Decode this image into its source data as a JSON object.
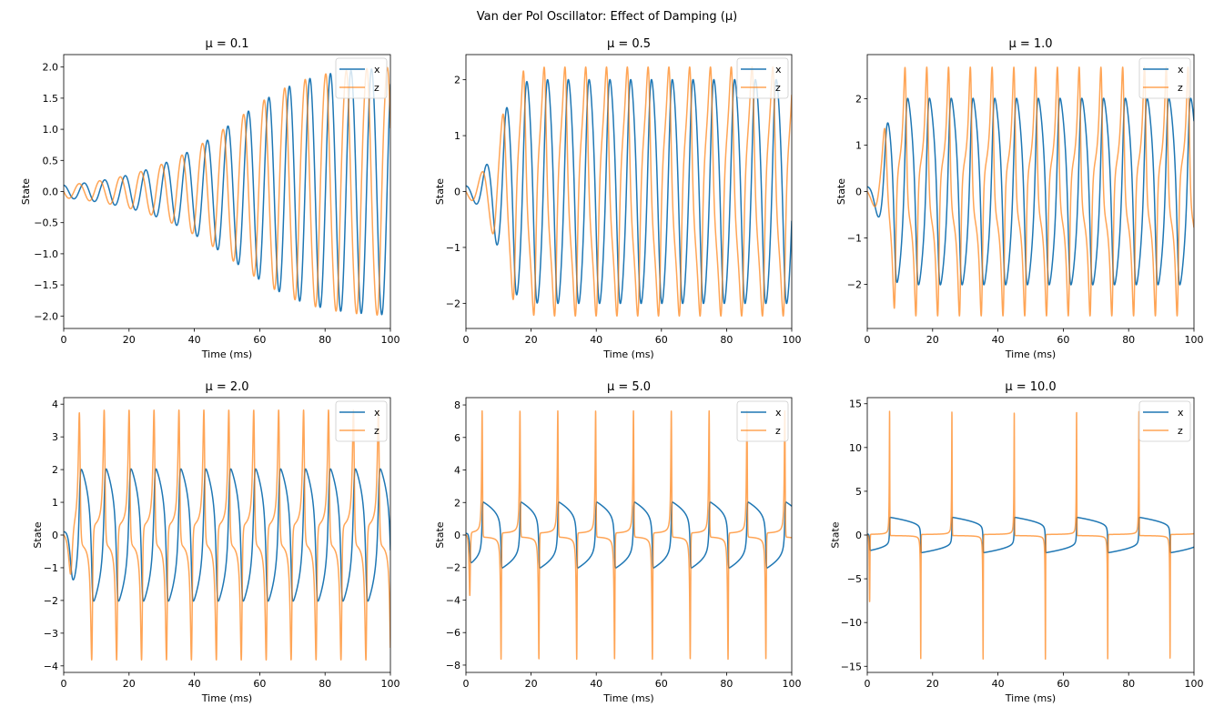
{
  "figure": {
    "suptitle": "Van der Pol Oscillator: Effect of Damping (μ)"
  },
  "chart_data": [
    {
      "type": "line",
      "title": "μ = 0.1",
      "mu": 0.1,
      "xlabel": "Time (ms)",
      "ylabel": "State",
      "xlim": [
        0,
        100
      ],
      "ylim": [
        -2.2,
        2.2
      ],
      "xticks": [
        "0",
        "20",
        "40",
        "60",
        "80",
        "100"
      ],
      "xtick_values": [
        0,
        20,
        40,
        60,
        80,
        100
      ],
      "yticks": [
        "−2.0",
        "−1.5",
        "−1.0",
        "−0.5",
        "0.0",
        "0.5",
        "1.0",
        "1.5",
        "2.0"
      ],
      "ytick_values": [
        -2.0,
        -1.5,
        -1.0,
        -0.5,
        0.0,
        0.5,
        1.0,
        1.5,
        2.0
      ],
      "legend": [
        "x",
        "z"
      ],
      "legend_position": "top-right",
      "grid": false,
      "initial_conditions": {
        "x": 0.1,
        "z": 0.0
      },
      "series": [
        {
          "name": "x",
          "color": "#1f77b4",
          "description": "growing oscillation from 0.1 to amplitude ~2.0, period ~6.3"
        },
        {
          "name": "z",
          "color": "#ff7f0e",
          "description": "derivative of x, leads x, amplitude grows to ~2.0"
        }
      ]
    },
    {
      "type": "line",
      "title": "μ = 0.5",
      "mu": 0.5,
      "xlabel": "Time (ms)",
      "ylabel": "State",
      "xlim": [
        0,
        100
      ],
      "ylim": [
        -2.45,
        2.45
      ],
      "xticks": [
        "0",
        "20",
        "40",
        "60",
        "80",
        "100"
      ],
      "xtick_values": [
        0,
        20,
        40,
        60,
        80,
        100
      ],
      "yticks": [
        "−2",
        "−1",
        "0",
        "1",
        "2"
      ],
      "ytick_values": [
        -2,
        -1,
        0,
        1,
        2
      ],
      "legend": [
        "x",
        "z"
      ],
      "legend_position": "top-right",
      "grid": false,
      "initial_conditions": {
        "x": 0.1,
        "z": 0.0
      },
      "series": [
        {
          "name": "x",
          "color": "#1f77b4",
          "description": "limit cycle amplitude ~2.0"
        },
        {
          "name": "z",
          "color": "#ff7f0e",
          "description": "peaks ~2.2"
        }
      ]
    },
    {
      "type": "line",
      "title": "μ = 1.0",
      "mu": 1.0,
      "xlabel": "Time (ms)",
      "ylabel": "State",
      "xlim": [
        0,
        100
      ],
      "ylim": [
        -2.95,
        2.95
      ],
      "xticks": [
        "0",
        "20",
        "40",
        "60",
        "80",
        "100"
      ],
      "xtick_values": [
        0,
        20,
        40,
        60,
        80,
        100
      ],
      "yticks": [
        "−2",
        "−1",
        "0",
        "1",
        "2"
      ],
      "ytick_values": [
        -2,
        -1,
        0,
        1,
        2
      ],
      "legend": [
        "x",
        "z"
      ],
      "legend_position": "top-right",
      "grid": false,
      "initial_conditions": {
        "x": 0.1,
        "z": 0.0
      },
      "series": [
        {
          "name": "x",
          "color": "#1f77b4",
          "description": "amplitude ~2.0"
        },
        {
          "name": "z",
          "color": "#ff7f0e",
          "description": "peaks ~2.67"
        }
      ]
    },
    {
      "type": "line",
      "title": "μ = 2.0",
      "mu": 2.0,
      "xlabel": "Time (ms)",
      "ylabel": "State",
      "xlim": [
        0,
        100
      ],
      "ylim": [
        -4.2,
        4.2
      ],
      "xticks": [
        "0",
        "20",
        "40",
        "60",
        "80",
        "100"
      ],
      "xtick_values": [
        0,
        20,
        40,
        60,
        80,
        100
      ],
      "yticks": [
        "−4",
        "−3",
        "−2",
        "−1",
        "0",
        "1",
        "2",
        "3",
        "4"
      ],
      "ytick_values": [
        -4,
        -3,
        -2,
        -1,
        0,
        1,
        2,
        3,
        4
      ],
      "legend": [
        "x",
        "z"
      ],
      "legend_position": "top-right",
      "grid": false,
      "initial_conditions": {
        "x": 0.1,
        "z": 0.0
      },
      "series": [
        {
          "name": "x",
          "color": "#1f77b4",
          "description": "amplitude ~2.0, relaxation shape"
        },
        {
          "name": "z",
          "color": "#ff7f0e",
          "description": "spikes to ~±3.83"
        }
      ]
    },
    {
      "type": "line",
      "title": "μ = 5.0",
      "mu": 5.0,
      "xlabel": "Time (ms)",
      "ylabel": "State",
      "xlim": [
        0,
        100
      ],
      "ylim": [
        -8.45,
        8.45
      ],
      "xticks": [
        "0",
        "20",
        "40",
        "60",
        "80",
        "100"
      ],
      "xtick_values": [
        0,
        20,
        40,
        60,
        80,
        100
      ],
      "yticks": [
        "−8",
        "−6",
        "−4",
        "−2",
        "0",
        "2",
        "4",
        "6",
        "8"
      ],
      "ytick_values": [
        -8,
        -6,
        -4,
        -2,
        0,
        2,
        4,
        6,
        8
      ],
      "legend": [
        "x",
        "z"
      ],
      "legend_position": "top-right",
      "grid": false,
      "initial_conditions": {
        "x": 0.1,
        "z": 0.0
      },
      "series": [
        {
          "name": "x",
          "color": "#1f77b4",
          "description": "amplitude ~2.0, relaxation oscillation"
        },
        {
          "name": "z",
          "color": "#ff7f0e",
          "description": "spikes to ~±7.6"
        }
      ]
    },
    {
      "type": "line",
      "title": "μ = 10.0",
      "mu": 10.0,
      "xlabel": "Time (ms)",
      "ylabel": "State",
      "xlim": [
        0,
        100
      ],
      "ylim": [
        -15.7,
        15.7
      ],
      "xticks": [
        "0",
        "20",
        "40",
        "60",
        "80",
        "100"
      ],
      "xtick_values": [
        0,
        20,
        40,
        60,
        80,
        100
      ],
      "yticks": [
        "−15",
        "−10",
        "−5",
        "0",
        "5",
        "10",
        "15"
      ],
      "ytick_values": [
        -15,
        -10,
        -5,
        0,
        5,
        10,
        15
      ],
      "legend": [
        "x",
        "z"
      ],
      "legend_position": "top-right",
      "grid": false,
      "initial_conditions": {
        "x": 0.1,
        "z": 0.0
      },
      "series": [
        {
          "name": "x",
          "color": "#1f77b4",
          "description": "amplitude ~2.0, slow relaxation, period ~19"
        },
        {
          "name": "z",
          "color": "#ff7f0e",
          "description": "spikes to ~±14.2"
        }
      ]
    }
  ]
}
